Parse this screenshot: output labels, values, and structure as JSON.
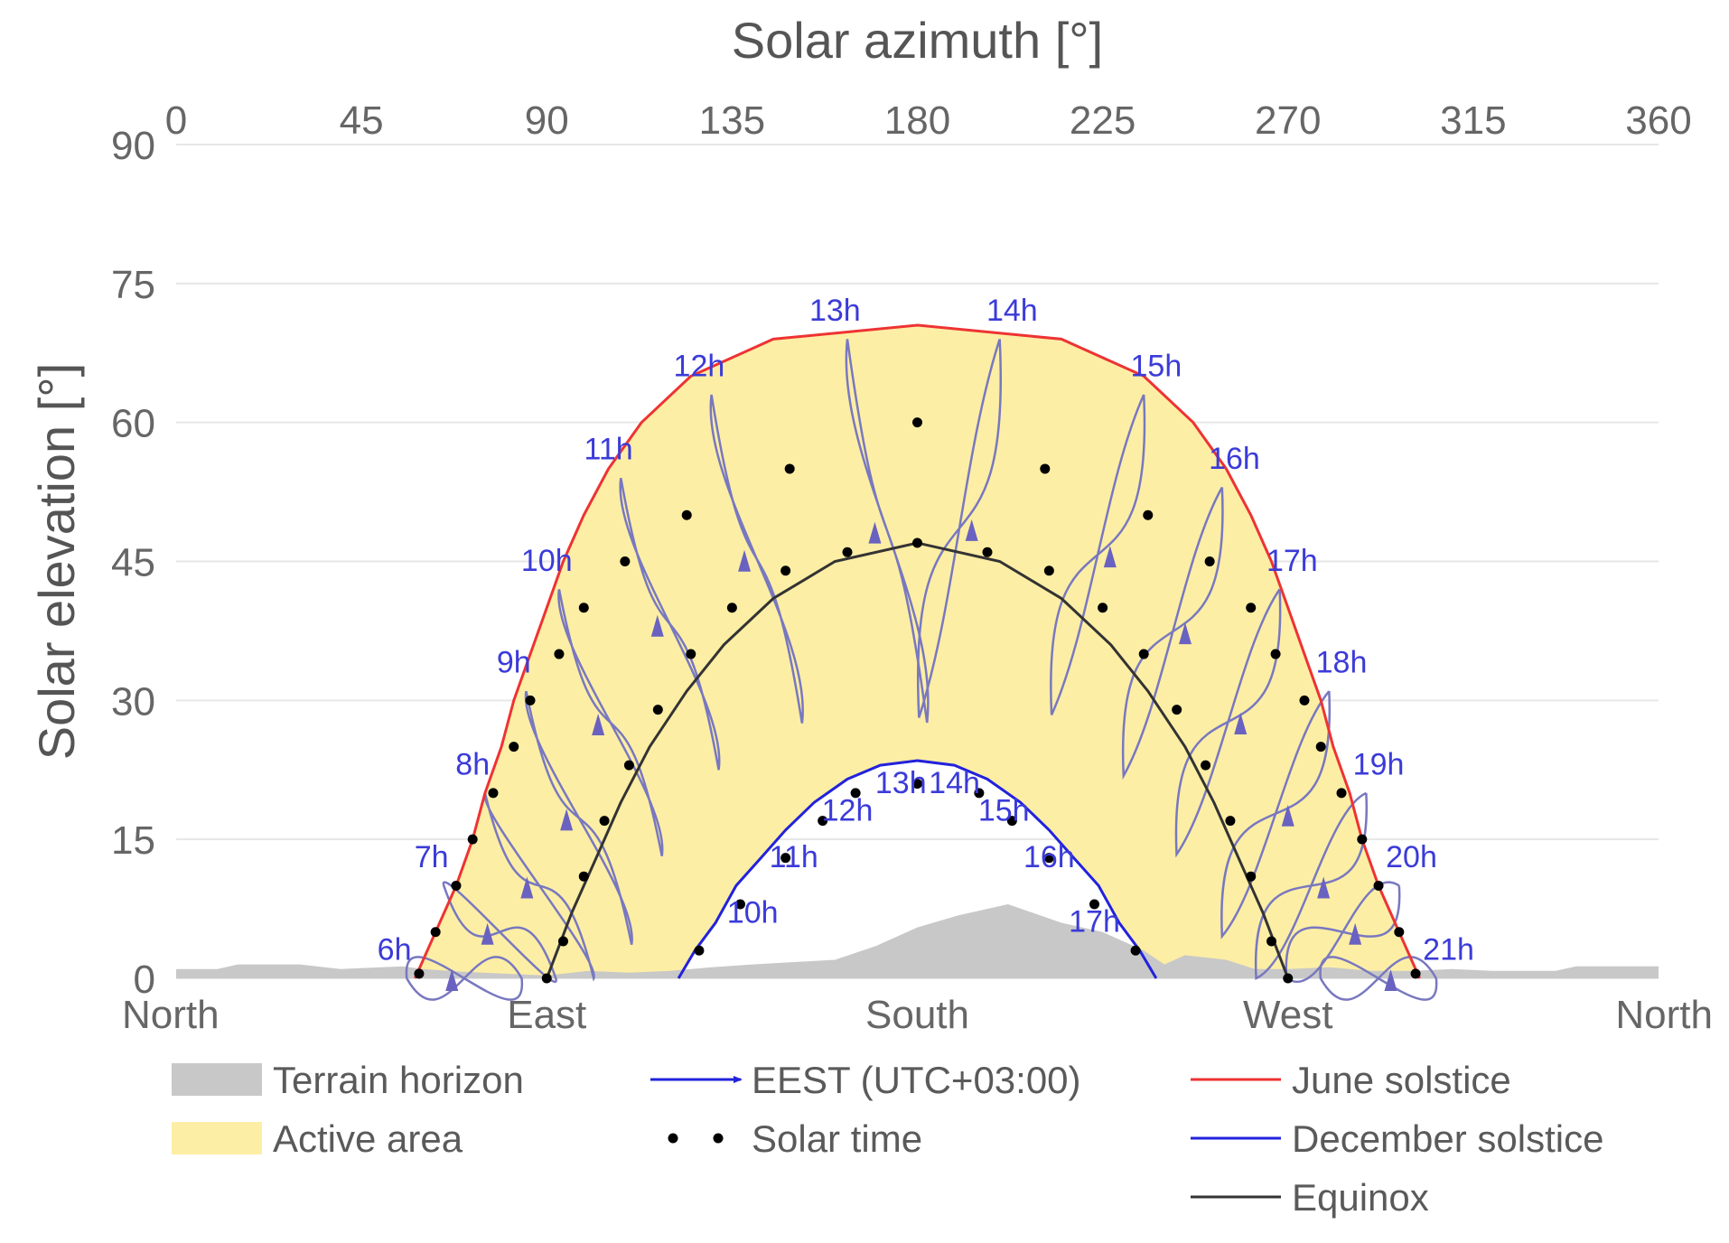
{
  "chart_data": {
    "type": "line",
    "title": "",
    "x_axis": {
      "label": "Solar azimuth [°]",
      "ticks": [
        0,
        45,
        90,
        135,
        180,
        225,
        270,
        315,
        360
      ],
      "range": [
        0,
        360
      ],
      "position": "top"
    },
    "y_axis": {
      "label": "Solar elevation [°]",
      "ticks": [
        0,
        15,
        30,
        45,
        60,
        75,
        90
      ],
      "range": [
        0,
        90
      ]
    },
    "directions": [
      {
        "label": "North",
        "azimuth": 0
      },
      {
        "label": "East",
        "azimuth": 90
      },
      {
        "label": "South",
        "azimuth": 180
      },
      {
        "label": "West",
        "azimuth": 270
      },
      {
        "label": "North",
        "azimuth": 360
      }
    ],
    "grid": true,
    "legend_position": "bottom",
    "colors": {
      "terrain": "#c8c8c8",
      "active_area": "#fdeea5",
      "june": "#ee3333",
      "december": "#2222dd",
      "equinox": "#333333",
      "analemma": "#7878c0",
      "hour_label": "#3b3bd9",
      "solar_time_dots": "#000000"
    },
    "series": [
      {
        "name": "June solstice",
        "points": [
          [
            58,
            0
          ],
          [
            63,
            5
          ],
          [
            68,
            10
          ],
          [
            72,
            15
          ],
          [
            75,
            20
          ],
          [
            79,
            25
          ],
          [
            82,
            30
          ],
          [
            86,
            35
          ],
          [
            90,
            40
          ],
          [
            94,
            45
          ],
          [
            99,
            50
          ],
          [
            105,
            55
          ],
          [
            113,
            60
          ],
          [
            125,
            65
          ],
          [
            145,
            69
          ],
          [
            180,
            70.5
          ],
          [
            215,
            69
          ],
          [
            235,
            65
          ],
          [
            247,
            60
          ],
          [
            255,
            55
          ],
          [
            261,
            50
          ],
          [
            266,
            45
          ],
          [
            270,
            40
          ],
          [
            274,
            35
          ],
          [
            278,
            30
          ],
          [
            281,
            25
          ],
          [
            285,
            20
          ],
          [
            288,
            15
          ],
          [
            292,
            10
          ],
          [
            297,
            5
          ],
          [
            302,
            0
          ]
        ]
      },
      {
        "name": "December solstice",
        "points": [
          [
            122,
            0
          ],
          [
            126,
            3
          ],
          [
            131,
            6
          ],
          [
            136,
            10
          ],
          [
            142,
            13
          ],
          [
            148,
            16
          ],
          [
            155,
            19
          ],
          [
            163,
            21.5
          ],
          [
            171,
            23
          ],
          [
            180,
            23.5
          ],
          [
            189,
            23
          ],
          [
            197,
            21.5
          ],
          [
            205,
            19
          ],
          [
            212,
            16
          ],
          [
            218,
            13
          ],
          [
            224,
            10
          ],
          [
            229,
            6
          ],
          [
            234,
            3
          ],
          [
            238,
            0
          ]
        ]
      },
      {
        "name": "Equinox",
        "points": [
          [
            90,
            0
          ],
          [
            96,
            7
          ],
          [
            102,
            13
          ],
          [
            108,
            19
          ],
          [
            115,
            25
          ],
          [
            124,
            31
          ],
          [
            133,
            36
          ],
          [
            145,
            41
          ],
          [
            160,
            45
          ],
          [
            180,
            47
          ],
          [
            200,
            45
          ],
          [
            215,
            41
          ],
          [
            227,
            36
          ],
          [
            236,
            31
          ],
          [
            245,
            25
          ],
          [
            252,
            19
          ],
          [
            258,
            13
          ],
          [
            264,
            7
          ],
          [
            270,
            0
          ]
        ]
      }
    ],
    "terrain_horizon": [
      [
        0,
        1
      ],
      [
        10,
        1
      ],
      [
        15,
        1.5
      ],
      [
        30,
        1.5
      ],
      [
        40,
        1
      ],
      [
        55,
        1.3
      ],
      [
        60,
        1
      ],
      [
        70,
        0.7
      ],
      [
        80,
        0.5
      ],
      [
        90,
        0.3
      ],
      [
        100,
        0.8
      ],
      [
        110,
        0.6
      ],
      [
        120,
        0.8
      ],
      [
        130,
        1.2
      ],
      [
        140,
        1.5
      ],
      [
        160,
        2
      ],
      [
        170,
        3.5
      ],
      [
        180,
        5.5
      ],
      [
        190,
        6.8
      ],
      [
        202,
        8
      ],
      [
        215,
        6
      ],
      [
        225,
        5
      ],
      [
        235,
        3
      ],
      [
        240,
        1.5
      ],
      [
        245,
        2.5
      ],
      [
        255,
        2
      ],
      [
        262,
        1
      ],
      [
        270,
        1
      ],
      [
        280,
        1.2
      ],
      [
        290,
        0.8
      ],
      [
        300,
        0.8
      ],
      [
        310,
        1
      ],
      [
        320,
        0.8
      ],
      [
        335,
        0.8
      ],
      [
        340,
        1.3
      ],
      [
        360,
        1.3
      ]
    ],
    "solar_time_dots": {
      "june": [
        [
          59,
          0.5
        ],
        [
          63,
          5
        ],
        [
          68,
          10
        ],
        [
          72,
          15
        ],
        [
          77,
          20
        ],
        [
          82,
          25
        ],
        [
          86,
          30
        ],
        [
          93,
          35
        ],
        [
          99,
          40
        ],
        [
          109,
          45
        ],
        [
          124,
          50
        ],
        [
          149,
          55
        ],
        [
          180,
          60
        ],
        [
          211,
          55
        ],
        [
          236,
          50
        ],
        [
          251,
          45
        ],
        [
          261,
          40
        ],
        [
          267,
          35
        ],
        [
          274,
          30
        ],
        [
          278,
          25
        ],
        [
          283,
          20
        ],
        [
          288,
          15
        ],
        [
          292,
          10
        ],
        [
          297,
          5
        ],
        [
          301,
          0.5
        ]
      ],
      "december": [
        [
          127,
          3
        ],
        [
          137,
          8
        ],
        [
          148,
          13
        ],
        [
          157,
          17
        ],
        [
          165,
          20
        ],
        [
          180,
          21
        ],
        [
          195,
          20
        ],
        [
          203,
          17
        ],
        [
          212,
          13
        ],
        [
          223,
          8
        ],
        [
          233,
          3
        ]
      ],
      "equinox": [
        [
          90,
          0
        ],
        [
          94,
          4
        ],
        [
          99,
          11
        ],
        [
          104,
          17
        ],
        [
          110,
          23
        ],
        [
          117,
          29
        ],
        [
          125,
          35
        ],
        [
          135,
          40
        ],
        [
          148,
          44
        ],
        [
          163,
          46
        ],
        [
          180,
          47
        ],
        [
          197,
          46
        ],
        [
          212,
          44
        ],
        [
          225,
          40
        ],
        [
          235,
          35
        ],
        [
          243,
          29
        ],
        [
          250,
          23
        ],
        [
          256,
          17
        ],
        [
          261,
          11
        ],
        [
          266,
          4
        ],
        [
          270,
          0
        ]
      ]
    },
    "hour_labels": {
      "june": [
        {
          "label": "6h",
          "az": 53,
          "el": 2
        },
        {
          "label": "7h",
          "az": 62,
          "el": 12
        },
        {
          "label": "8h",
          "az": 72,
          "el": 22
        },
        {
          "label": "9h",
          "az": 82,
          "el": 33
        },
        {
          "label": "10h",
          "az": 90,
          "el": 44
        },
        {
          "label": "11h",
          "az": 105,
          "el": 56
        },
        {
          "label": "12h",
          "az": 127,
          "el": 65
        },
        {
          "label": "13h",
          "az": 160,
          "el": 71
        },
        {
          "label": "14h",
          "az": 203,
          "el": 71
        },
        {
          "label": "15h",
          "az": 238,
          "el": 65
        },
        {
          "label": "16h",
          "az": 257,
          "el": 55
        },
        {
          "label": "17h",
          "az": 271,
          "el": 44
        },
        {
          "label": "18h",
          "az": 283,
          "el": 33
        },
        {
          "label": "19h",
          "az": 292,
          "el": 22
        },
        {
          "label": "20h",
          "az": 300,
          "el": 12
        },
        {
          "label": "21h",
          "az": 309,
          "el": 2
        }
      ],
      "december": [
        {
          "label": "10h",
          "az": 140,
          "el": 6
        },
        {
          "label": "11h",
          "az": 150,
          "el": 12
        },
        {
          "label": "12h",
          "az": 163,
          "el": 17
        },
        {
          "label": "13h",
          "az": 176,
          "el": 20
        },
        {
          "label": "14h",
          "az": 189,
          "el": 20
        },
        {
          "label": "15h",
          "az": 201,
          "el": 17
        },
        {
          "label": "16h",
          "az": 212,
          "el": 12
        },
        {
          "label": "17h",
          "az": 223,
          "el": 5
        }
      ]
    },
    "legend": [
      {
        "label": "Terrain horizon",
        "kind": "terrain"
      },
      {
        "label": "Active area",
        "kind": "active"
      },
      {
        "label": "EEST (UTC+03:00)",
        "kind": "arrow"
      },
      {
        "label": "Solar time",
        "kind": "dots"
      },
      {
        "label": "June solstice",
        "kind": "june"
      },
      {
        "label": "December solstice",
        "kind": "december"
      },
      {
        "label": "Equinox",
        "kind": "equinox"
      }
    ]
  }
}
